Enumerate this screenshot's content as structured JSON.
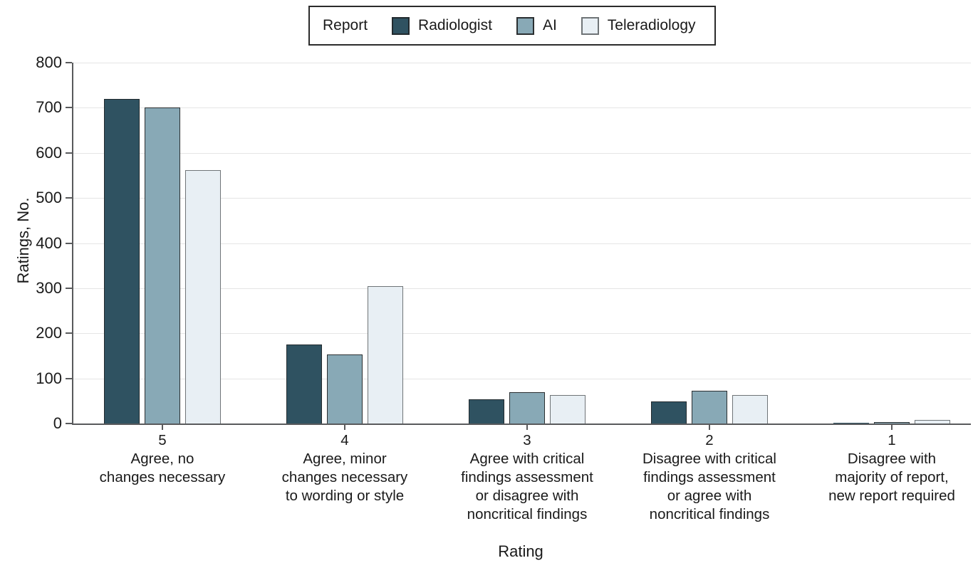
{
  "chart_data": {
    "type": "bar",
    "title": "",
    "ylabel": "Ratings, No.",
    "xlabel": "Rating",
    "ylim": [
      0,
      800
    ],
    "ytick_interval": 100,
    "grid": true,
    "legend_position": "top-center",
    "legend_title": "Report",
    "categories": [
      {
        "rating": "5",
        "label_lines": [
          "Agree, no",
          "changes necessary"
        ]
      },
      {
        "rating": "4",
        "label_lines": [
          "Agree, minor",
          "changes necessary",
          "to wording or style"
        ]
      },
      {
        "rating": "3",
        "label_lines": [
          "Agree with critical",
          "findings assessment",
          "or disagree with",
          "noncritical findings"
        ]
      },
      {
        "rating": "2",
        "label_lines": [
          "Disagree with critical",
          "findings assessment",
          "or agree with",
          "noncritical findings"
        ]
      },
      {
        "rating": "1",
        "label_lines": [
          "Disagree with",
          "majority of report,",
          "new report required"
        ]
      }
    ],
    "series": [
      {
        "name": "Radiologist",
        "color": "#2F5261",
        "border_color": "#222a2e",
        "values": [
          720,
          175,
          54,
          49,
          1
        ]
      },
      {
        "name": "AI",
        "color": "#88A9B6",
        "border_color": "#2b2f31",
        "values": [
          700,
          153,
          69,
          72,
          4
        ]
      },
      {
        "name": "Teleradiology",
        "color": "#E8EFF4",
        "border_color": "#6f7477",
        "values": [
          562,
          304,
          63,
          63,
          8
        ]
      }
    ],
    "colors": {
      "axis": "#595a5c",
      "gridline": "#e5e5e5",
      "text": "#1a1a1a"
    }
  }
}
